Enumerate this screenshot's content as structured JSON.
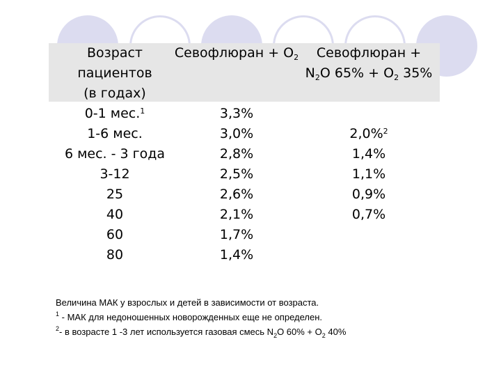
{
  "header": {
    "col1": [
      "Возраст",
      "пациентов",
      "(в годах)"
    ],
    "col2_text": "Севофлюран + O",
    "col2_sub": "2",
    "col3_line1": "Севофлюран +",
    "col3_line2_a": "N",
    "col3_line2_sub1": "2",
    "col3_line2_b": "O 65% + O",
    "col3_line2_sub2": "2",
    "col3_line2_c": " 35%"
  },
  "rows": [
    {
      "age": "0-1 мес.",
      "age_sup": "1",
      "sevo_o2": "3,3%",
      "sevo_n2o": "",
      "sevo_n2o_sup": ""
    },
    {
      "age": "1-6 мес.",
      "age_sup": "",
      "sevo_o2": "3,0%",
      "sevo_n2o": "2,0%",
      "sevo_n2o_sup": "2"
    },
    {
      "age": "6 мес. - 3 года",
      "age_sup": "",
      "sevo_o2": "2,8%",
      "sevo_n2o": "1,4%",
      "sevo_n2o_sup": ""
    },
    {
      "age": "3-12",
      "age_sup": "",
      "sevo_o2": "2,5%",
      "sevo_n2o": "1,1%",
      "sevo_n2o_sup": ""
    },
    {
      "age": "25",
      "age_sup": "",
      "sevo_o2": "2,6%",
      "sevo_n2o": "0,9%",
      "sevo_n2o_sup": ""
    },
    {
      "age": "40",
      "age_sup": "",
      "sevo_o2": "2,1%",
      "sevo_n2o": "0,7%",
      "sevo_n2o_sup": ""
    },
    {
      "age": "60",
      "age_sup": "",
      "sevo_o2": "1,7%",
      "sevo_n2o": "",
      "sevo_n2o_sup": ""
    },
    {
      "age": "80",
      "age_sup": "",
      "sevo_o2": "1,4%",
      "sevo_n2o": "",
      "sevo_n2o_sup": ""
    }
  ],
  "notes": {
    "caption": "Величина МАК у взрослых и детей в зависимости от возраста.",
    "note1_mark": "1",
    "note1_text": " - МАК для недоношенных новорожденных еще не определен.",
    "note2_mark": "2",
    "note2_a": "- в возрасте 1 -3 лет используется газовая смесь N",
    "note2_sub1": "2",
    "note2_b": "O 60% + O",
    "note2_sub2": "2",
    "note2_c": " 40%"
  },
  "colors": {
    "circle_fill": "#dcdcf0",
    "header_band": "#e6e6e6"
  }
}
